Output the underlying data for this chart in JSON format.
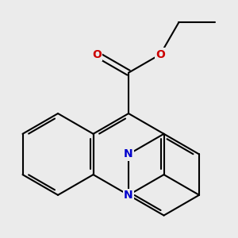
{
  "background_color": "#ebebeb",
  "bond_color": "#000000",
  "bond_width": 1.5,
  "atom_colors": {
    "N": "#0000cc",
    "O": "#cc0000"
  },
  "font_size": 10,
  "fig_size": [
    3.0,
    3.0
  ],
  "dpi": 100
}
